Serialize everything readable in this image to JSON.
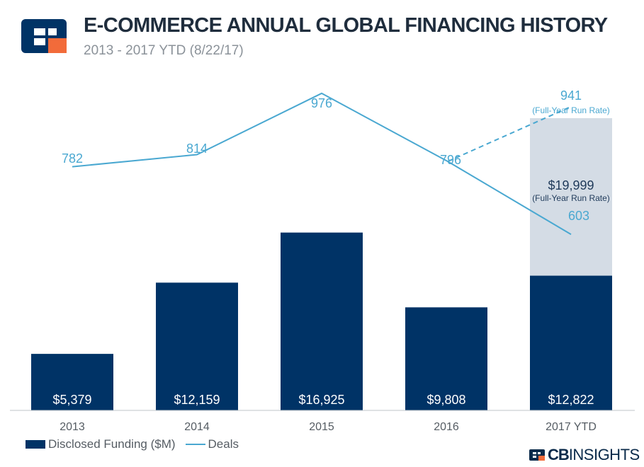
{
  "header": {
    "title": "E-COMMERCE ANNUAL GLOBAL FINANCING HISTORY",
    "subtitle": "2013 - 2017 YTD (8/22/17)"
  },
  "legend": {
    "funding_label": "Disclosed Funding ($M)",
    "deals_label": "Deals"
  },
  "brand": {
    "cb": "CB",
    "insights": "INSIGHTS"
  },
  "colors": {
    "bar": "#003366",
    "run_rate_bar": "#d4dce5",
    "line": "#4aa8d1",
    "axis": "#bfc4c9",
    "logo_orange": "#f26b3a"
  },
  "chart_data": {
    "type": "bar",
    "title": "E-COMMERCE ANNUAL GLOBAL FINANCING HISTORY",
    "categories": [
      "2013",
      "2014",
      "2015",
      "2016",
      "2017 YTD"
    ],
    "series": [
      {
        "name": "Disclosed Funding ($M)",
        "type": "bar",
        "values": [
          5379,
          12159,
          16925,
          9808,
          12822
        ],
        "labels": [
          "$5,379",
          "$12,159",
          "$16,925",
          "$9,808",
          "$12,822"
        ]
      },
      {
        "name": "Deals",
        "type": "line",
        "values": [
          782,
          814,
          976,
          796,
          603
        ],
        "labels": [
          "782",
          "814",
          "976",
          "796",
          "603"
        ]
      }
    ],
    "run_rate": {
      "category": "2017 YTD",
      "funding": 19999,
      "funding_label": "$19,999",
      "deals": 941,
      "deals_label": "941",
      "note": "(Full-Year Run Rate)"
    },
    "ylim_funding": [
      0,
      22000
    ],
    "ylim_deals": [
      0,
      1400
    ],
    "xlabel": "",
    "ylabel": ""
  }
}
